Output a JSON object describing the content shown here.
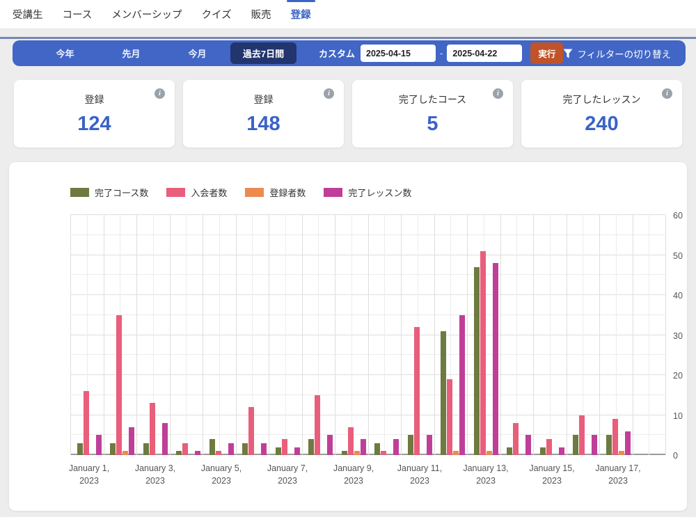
{
  "nav": {
    "tabs": [
      {
        "label": "受講生",
        "active": false
      },
      {
        "label": "コース",
        "active": false
      },
      {
        "label": "メンバーシップ",
        "active": false
      },
      {
        "label": "クイズ",
        "active": false
      },
      {
        "label": "販売",
        "active": false
      },
      {
        "label": "登録",
        "active": true
      }
    ]
  },
  "filter_bar": {
    "presets": [
      "今年",
      "先月",
      "今月",
      "過去7日間"
    ],
    "active_preset": "過去7日間",
    "custom_label": "カスタム",
    "date_from": "2025-04-15",
    "date_separator": "-",
    "date_to": "2025-04-22",
    "run_label": "実行",
    "toggle_label": "フィルターの切り替え"
  },
  "stats": [
    {
      "label": "登録",
      "value": "124"
    },
    {
      "label": "登録",
      "value": "148"
    },
    {
      "label": "完了したコース",
      "value": "5"
    },
    {
      "label": "完了したレッスン",
      "value": "240"
    }
  ],
  "colors": {
    "accent_blue": "#4166c6",
    "active_chip": "#22356e",
    "run_button": "#c05329",
    "stat_value": "#3a62c8",
    "active_tab": "#3a64c8"
  },
  "chart_data": {
    "type": "bar",
    "categories": [
      "January 1, 2023",
      "January 2, 2023",
      "January 3, 2023",
      "January 4, 2023",
      "January 5, 2023",
      "January 6, 2023",
      "January 7, 2023",
      "January 8, 2023",
      "January 9, 2023",
      "January 10, 2023",
      "January 11, 2023",
      "January 12, 2023",
      "January 13, 2023",
      "January 14, 2023",
      "January 15, 2023",
      "January 16, 2023",
      "January 17, 2023"
    ],
    "series": [
      {
        "name": "完了コース数",
        "color": "#6d7a40",
        "values": [
          3,
          3,
          3,
          1,
          4,
          3,
          2,
          4,
          1,
          3,
          5,
          31,
          47,
          2,
          2,
          5,
          5
        ]
      },
      {
        "name": "入会者数",
        "color": "#e85e7b",
        "values": [
          16,
          35,
          13,
          3,
          1,
          12,
          4,
          15,
          7,
          1,
          32,
          19,
          51,
          8,
          4,
          10,
          9
        ]
      },
      {
        "name": "登録者数",
        "color": "#ec8a50",
        "values": [
          0,
          1,
          0,
          0,
          0,
          0,
          0,
          0,
          1,
          0,
          0,
          1,
          1,
          0,
          0,
          0,
          1
        ]
      },
      {
        "name": "完了レッスン数",
        "color": "#bf3f98",
        "values": [
          5,
          7,
          8,
          1,
          3,
          3,
          2,
          5,
          4,
          4,
          5,
          35,
          48,
          5,
          2,
          5,
          6
        ]
      }
    ],
    "ylim": [
      0,
      60
    ],
    "y_ticks": [
      0,
      10,
      20,
      30,
      40,
      50,
      60
    ],
    "y_axis_side": "right",
    "x_labeled_every": 2,
    "grid": true,
    "legend_position": "top-left"
  }
}
